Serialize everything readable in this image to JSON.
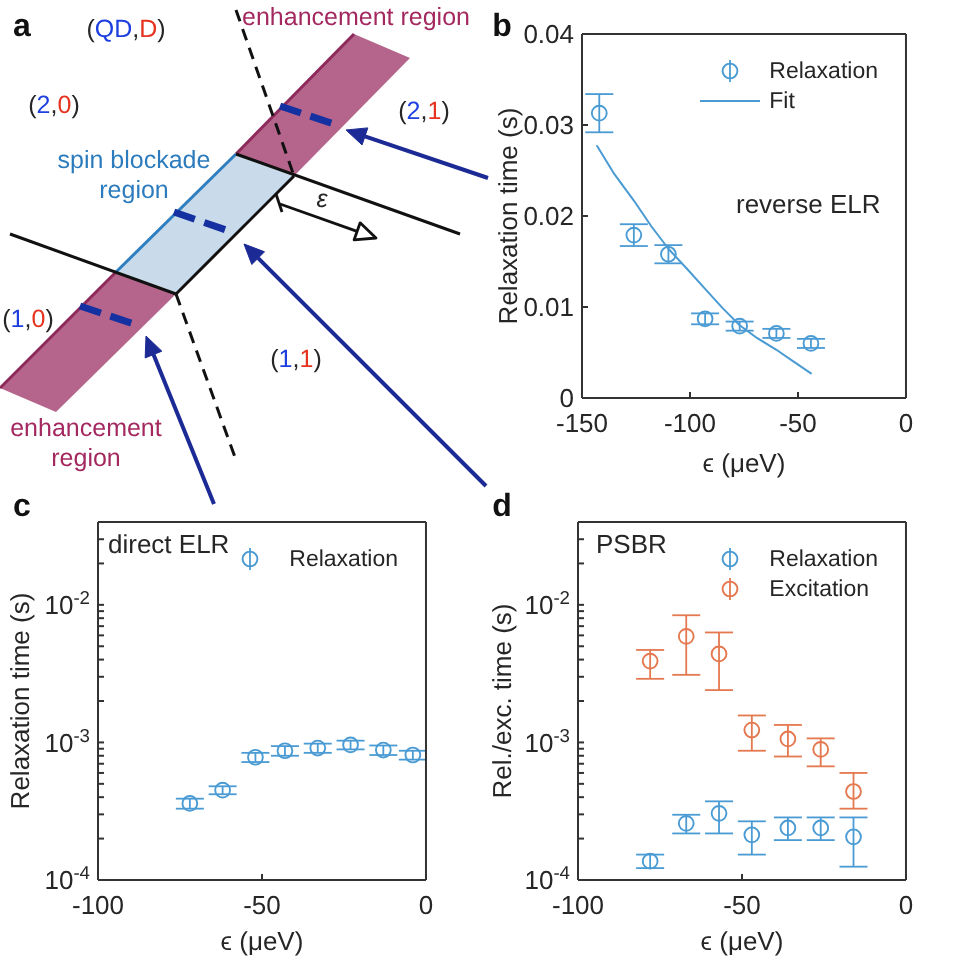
{
  "chart_data": [
    {
      "type": "other",
      "title": "a",
      "annotations": [
        "(QD,D)",
        "enhancement region",
        "(2,0)",
        "(2,1)",
        "spin blockade region",
        "ε",
        "(1,0)",
        "(1,1)",
        "enhancement region"
      ]
    },
    {
      "type": "scatter",
      "title": "b",
      "xlabel": "ϵ (μeV)",
      "ylabel": "Relaxation time (s)",
      "xlim": [
        -150,
        0
      ],
      "xticks": [
        -150,
        -100,
        -50,
        0
      ],
      "ylim": [
        0,
        0.04
      ],
      "yticks": [
        0,
        0.01,
        0.02,
        0.03,
        0.04
      ],
      "marker": "circle",
      "legend": "top right",
      "annotations": [
        "reverse ELR"
      ],
      "series": [
        {
          "name": "Relaxation",
          "color": "#4a9bd4",
          "x": [
            -142,
            -126,
            -110,
            -93,
            -77,
            -60,
            -44
          ],
          "values": [
            0.0313,
            0.0179,
            0.0158,
            0.0087,
            0.0079,
            0.0071,
            0.006
          ],
          "errors": [
            0.0021,
            0.0012,
            0.001,
            0.0006,
            0.0005,
            0.0005,
            0.0005
          ]
        },
        {
          "name": "Fit",
          "type": "line",
          "marker": "none",
          "color": "#4a9bd4",
          "x": [
            -143,
            -135,
            -126,
            -118,
            -110,
            -101,
            -93,
            -85,
            -77,
            -69,
            -60,
            -52,
            -44
          ],
          "values": [
            0.0277,
            0.0246,
            0.0217,
            0.0189,
            0.0164,
            0.0141,
            0.012,
            0.0099,
            0.008,
            0.0066,
            0.0053,
            0.004,
            0.0027
          ]
        }
      ]
    },
    {
      "type": "scatter",
      "title": "c",
      "xlabel": "ϵ (μeV)",
      "ylabel": "Relaxation time (s)",
      "xlim": [
        -100,
        0
      ],
      "xticks": [
        -100,
        -50,
        0
      ],
      "ylim": [
        0.0001,
        0.04
      ],
      "yticks": [
        {
          "value": 0.0001,
          "label": "10$^{-4}$"
        },
        {
          "value": 0.0002,
          "label": null
        },
        {
          "value": 0.0003,
          "label": null
        },
        {
          "value": 0.0004,
          "label": null
        },
        {
          "value": 0.0005,
          "label": null
        },
        {
          "value": 0.0006,
          "label": null
        },
        {
          "value": 0.0007,
          "label": null
        },
        {
          "value": 0.0008,
          "label": null
        },
        {
          "value": 0.0009,
          "label": null
        },
        {
          "value": 0.001,
          "label": "10$^{-3}$"
        },
        {
          "value": 0.002,
          "label": null
        },
        {
          "value": 0.003,
          "label": null
        },
        {
          "value": 0.004,
          "label": null
        },
        {
          "value": 0.005,
          "label": null
        },
        {
          "value": 0.006,
          "label": null
        },
        {
          "value": 0.007,
          "label": null
        },
        {
          "value": 0.008,
          "label": null
        },
        {
          "value": 0.009,
          "label": null
        },
        {
          "value": 0.01,
          "label": "10$^{-2}$"
        },
        {
          "value": 0.02,
          "label": null
        },
        {
          "value": 0.03,
          "label": null
        }
      ],
      "log": true,
      "marker": "circle",
      "legend": "top right",
      "annotations": [
        "direct ELR"
      ],
      "series": [
        {
          "name": "Relaxation",
          "color": "#4a9bd4",
          "x": [
            -72,
            -62,
            -52,
            -43,
            -33,
            -23,
            -13,
            -4
          ],
          "values": [
            0.00036,
            0.00045,
            0.00078,
            0.00087,
            0.00091,
            0.00096,
            0.00088,
            0.00081
          ],
          "errors": [
            3e-05,
            3e-05,
            6e-05,
            7e-05,
            7e-05,
            7e-05,
            7e-05,
            6e-05
          ]
        }
      ]
    },
    {
      "type": "scatter",
      "title": "d",
      "xlabel": "ϵ (μeV)",
      "ylabel": "Rel./exc. time (s)",
      "xlim": [
        -100,
        0
      ],
      "xticks": [
        -100,
        -50,
        0
      ],
      "ylim": [
        0.0001,
        0.04
      ],
      "yticks": [
        {
          "value": 0.0001,
          "label": "10$^{-4}$"
        },
        {
          "value": 0.0002,
          "label": null
        },
        {
          "value": 0.0003,
          "label": null
        },
        {
          "value": 0.0004,
          "label": null
        },
        {
          "value": 0.0005,
          "label": null
        },
        {
          "value": 0.0006,
          "label": null
        },
        {
          "value": 0.0007,
          "label": null
        },
        {
          "value": 0.0008,
          "label": null
        },
        {
          "value": 0.0009,
          "label": null
        },
        {
          "value": 0.001,
          "label": "10$^{-3}$"
        },
        {
          "value": 0.002,
          "label": null
        },
        {
          "value": 0.003,
          "label": null
        },
        {
          "value": 0.004,
          "label": null
        },
        {
          "value": 0.005,
          "label": null
        },
        {
          "value": 0.006,
          "label": null
        },
        {
          "value": 0.007,
          "label": null
        },
        {
          "value": 0.008,
          "label": null
        },
        {
          "value": 0.009,
          "label": null
        },
        {
          "value": 0.01,
          "label": "10$^{-2}$"
        },
        {
          "value": 0.02,
          "label": null
        },
        {
          "value": 0.03,
          "label": null
        }
      ],
      "log": true,
      "marker": "circle",
      "legend": "top right",
      "annotations": [
        "PSBR"
      ],
      "series": [
        {
          "name": "Relaxation",
          "color": "#4a9bd4",
          "x": [
            -78,
            -67,
            -57,
            -47,
            -36,
            -26,
            -16
          ],
          "values": [
            0.000137,
            0.000258,
            0.000305,
            0.000213,
            0.000239,
            0.000239,
            0.000206
          ],
          "errors": [
            [
              0.000122,
              0.000153
            ],
            [
              0.000218,
              0.000298
            ],
            [
              0.000218,
              0.000373
            ],
            [
              0.000153,
              0.000267
            ],
            [
              0.000195,
              0.000285
            ],
            [
              0.000195,
              0.000285
            ],
            [
              0.000125,
              0.000285
            ]
          ]
        },
        {
          "name": "Excitation",
          "color": "#e4784f",
          "x": [
            -78,
            -67,
            -57,
            -47,
            -36,
            -26,
            -16
          ],
          "values": [
            0.0039,
            0.0059,
            0.0044,
            0.00123,
            0.00106,
            0.00089,
            0.00044
          ],
          "errors": [
            [
              0.0029,
              0.0047
            ],
            [
              0.0031,
              0.0084
            ],
            [
              0.0024,
              0.0063
            ],
            [
              0.00087,
              0.00157
            ],
            [
              0.00079,
              0.00134
            ],
            [
              0.00067,
              0.00107
            ],
            [
              0.00033,
              0.0006
            ]
          ]
        }
      ]
    }
  ]
}
